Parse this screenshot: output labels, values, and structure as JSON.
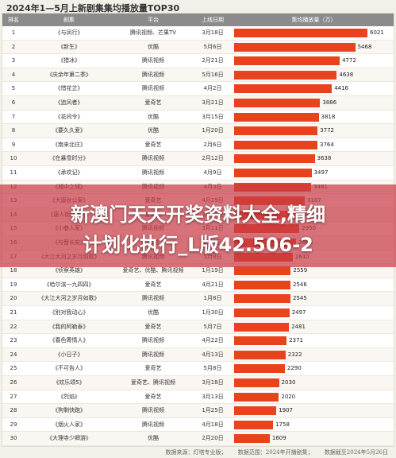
{
  "title": "2024年1—5月上新剧集集均播放量TOP30",
  "headers": {
    "rank": "排名",
    "name": "剧集",
    "platform": "平台",
    "date": "上线日期",
    "plays": "集均播放量（万）"
  },
  "overlay": {
    "line1": "新澳门天天开奖资料大全,精细",
    "line2": "计划化执行_L版42.506-2"
  },
  "footer": {
    "source": "数据来源：灯塔专业版；",
    "range": "数据范围：2024年开播剧集；",
    "cutoff": "数据截至2024年5月26日"
  },
  "chart_data": {
    "type": "bar",
    "orientation": "horizontal",
    "title": "2024年1—5月上新剧集集均播放量TOP30",
    "value_label": "集均播放量（万）",
    "bar_color": "#e8431c",
    "xlim": [
      0,
      6021
    ],
    "rows": [
      {
        "rank": "1",
        "name": "《与凤行》",
        "platform": "腾讯视频、芒果TV",
        "date": "3月18日",
        "value": 6021
      },
      {
        "rank": "2",
        "name": "《新生》",
        "platform": "优酷",
        "date": "5月6日",
        "value": 5468
      },
      {
        "rank": "3",
        "name": "《猎冰》",
        "platform": "腾讯视频",
        "date": "2月21日",
        "value": 4772
      },
      {
        "rank": "4",
        "name": "《庆余年第二季》",
        "platform": "腾讯视频",
        "date": "5月16日",
        "value": 4638
      },
      {
        "rank": "5",
        "name": "《惜花芷》",
        "platform": "腾讯视频",
        "date": "4月2日",
        "value": 4416
      },
      {
        "rank": "6",
        "name": "《追风者》",
        "platform": "爱奇艺",
        "date": "3月21日",
        "value": 3886
      },
      {
        "rank": "7",
        "name": "《花间令》",
        "platform": "优酷",
        "date": "3月15日",
        "value": 3818
      },
      {
        "rank": "8",
        "name": "《要久久爱》",
        "platform": "优酷",
        "date": "1月20日",
        "value": 3772
      },
      {
        "rank": "9",
        "name": "《南来北往》",
        "platform": "爱奇艺",
        "date": "2月6日",
        "value": 3764
      },
      {
        "rank": "10",
        "name": "《在暴雪时分》",
        "platform": "腾讯视频",
        "date": "2月12日",
        "value": 3638
      },
      {
        "rank": "11",
        "name": "《承欢记》",
        "platform": "腾讯视频",
        "date": "4月9日",
        "value": 3497
      },
      {
        "rank": "12",
        "name": "《城中之城》",
        "platform": "腾讯视频",
        "date": "4月3日",
        "value": 3481
      },
      {
        "rank": "13",
        "name": "《大唐狄公案》",
        "platform": "爱奇艺",
        "date": "4月29日",
        "value": 3187
      },
      {
        "rank": "14",
        "name": "《唐人街探案2》",
        "platform": "爱奇艺",
        "date": "2月22日",
        "value": 3026
      },
      {
        "rank": "15",
        "name": "《小巷人家》",
        "platform": "腾讯视频",
        "date": "3月11日",
        "value": 2950
      },
      {
        "rank": "16",
        "name": "《与晋长安》",
        "platform": "优酷",
        "date": "2月1日",
        "value": 2806
      },
      {
        "rank": "17",
        "name": "《大江大河之岁月如歌》",
        "platform": "腾讯视频",
        "date": "5月8日",
        "value": 2640
      },
      {
        "rank": "18",
        "name": "《侦察英雄》",
        "platform": "爱奇艺、优酷、腾讯视频",
        "date": "1月19日",
        "value": 2559
      },
      {
        "rank": "19",
        "name": "《哈尔滨一九四四》",
        "platform": "爱奇艺",
        "date": "4月21日",
        "value": 2546
      },
      {
        "rank": "20",
        "name": "《大江大河之岁月如歌》",
        "platform": "腾讯视频",
        "date": "1月8日",
        "value": 2545
      },
      {
        "rank": "21",
        "name": "《别对我动心》",
        "platform": "优酷",
        "date": "1月30日",
        "value": 2497
      },
      {
        "rank": "22",
        "name": "《我的阿勒泰》",
        "platform": "爱奇艺",
        "date": "5月7日",
        "value": 2481
      },
      {
        "rank": "23",
        "name": "《春色寄情人》",
        "platform": "腾讯视频",
        "date": "4月22日",
        "value": 2371
      },
      {
        "rank": "24",
        "name": "《小日子》",
        "platform": "腾讯视频",
        "date": "4月13日",
        "value": 2322
      },
      {
        "rank": "25",
        "name": "《不可告人》",
        "platform": "爱奇艺",
        "date": "5月8日",
        "value": 2290
      },
      {
        "rank": "26",
        "name": "《欢乐颂5》",
        "platform": "爱奇艺、腾讯视频",
        "date": "3月18日",
        "value": 2030
      },
      {
        "rank": "27",
        "name": "《烈焰》",
        "platform": "爱奇艺",
        "date": "3月13日",
        "value": 2020
      },
      {
        "rank": "28",
        "name": "《狗剩快跑》",
        "platform": "腾讯视频",
        "date": "1月25日",
        "value": 1907
      },
      {
        "rank": "29",
        "name": "《烟火人家》",
        "platform": "腾讯视频",
        "date": "4月18日",
        "value": 1758
      },
      {
        "rank": "30",
        "name": "《大理寺少卿游》",
        "platform": "优酷",
        "date": "2月20日",
        "value": 1609
      }
    ]
  }
}
